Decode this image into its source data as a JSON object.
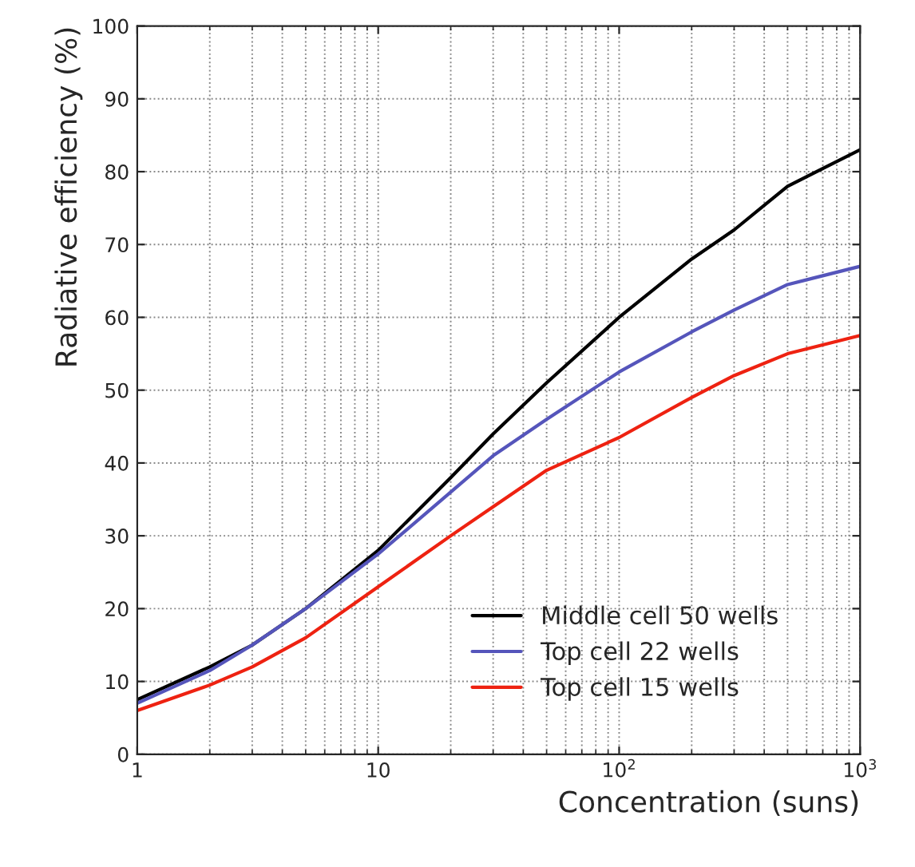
{
  "chart_data": {
    "type": "line",
    "xlabel": "Concentration (suns)",
    "ylabel": "Radiative efficiency (%)",
    "x": [
      1,
      2,
      3,
      5,
      10,
      20,
      30,
      50,
      100,
      200,
      300,
      500,
      1000
    ],
    "series": [
      {
        "name": "Middle cell 50 wells",
        "color": "#000000",
        "values": [
          7.5,
          12,
          15,
          20,
          28,
          38,
          44,
          51,
          60,
          68,
          72,
          78,
          83
        ]
      },
      {
        "name": "Top cell 22 wells",
        "color": "#5555bb",
        "values": [
          7,
          11.5,
          15,
          20,
          27.5,
          36,
          41,
          46,
          52.5,
          58,
          61,
          64.5,
          67
        ]
      },
      {
        "name": "Top cell 15 wells",
        "color": "#ee2211",
        "values": [
          6,
          9.5,
          12,
          16,
          23,
          30,
          34,
          39,
          43.5,
          49,
          52,
          55,
          57.5
        ]
      }
    ],
    "log": "x",
    "xlim": [
      1,
      1000
    ],
    "ylim": [
      0,
      100
    ],
    "xticks": [
      1,
      10,
      {
        "value": 100,
        "label": "10$^{2}$"
      },
      {
        "value": 1000,
        "label": "10$^{3}$"
      }
    ],
    "yticks": [
      0,
      10,
      20,
      30,
      40,
      50,
      60,
      70,
      80,
      90,
      100
    ],
    "grid": true,
    "legend": "bottom right",
    "line_style": "solid"
  }
}
